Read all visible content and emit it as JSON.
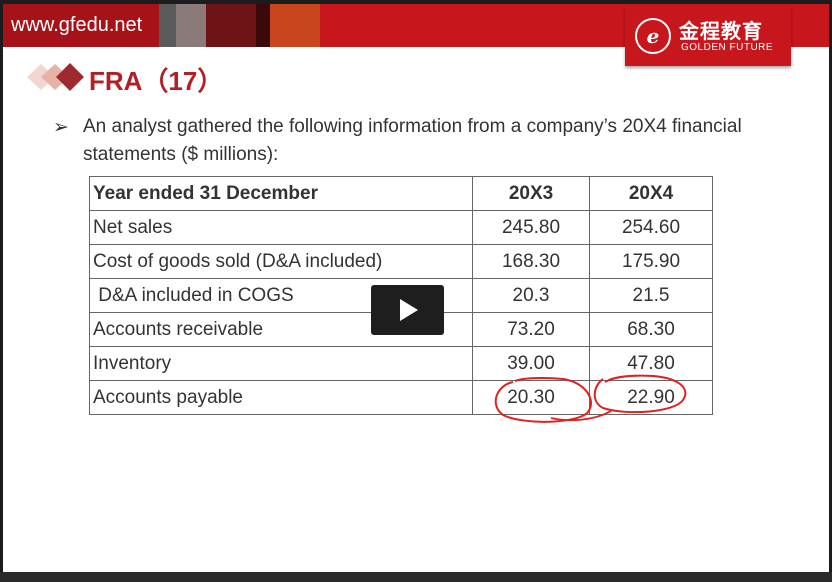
{
  "header": {
    "url": "www.gfedu.net",
    "logo_cn": "金程教育",
    "logo_en": "GOLDEN FUTURE"
  },
  "slide": {
    "title": "FRA（17）",
    "bullet": "➢",
    "intro": "An analyst gathered the following information from a company’s 20X4 financial statements ($ millions):"
  },
  "table": {
    "headers": [
      "Year ended 31 December",
      "20X3",
      "20X4"
    ],
    "rows": [
      [
        "Net sales",
        "245.80",
        "254.60"
      ],
      [
        "Cost of goods sold (D&A included)",
        "168.30",
        "175.90"
      ],
      [
        " D&A included in COGS",
        "20.3",
        "21.5"
      ],
      [
        "Accounts receivable",
        "73.20",
        "68.30"
      ],
      [
        "Inventory",
        "39.00",
        "47.80"
      ],
      [
        "Accounts payable",
        "20.30",
        "22.90"
      ]
    ]
  },
  "colors": {
    "brand_red": "#c8161d",
    "title_red": "#b21f24",
    "annotation_red": "#e0201e"
  },
  "icons": {
    "play": "play-icon",
    "logo_seal": "logo-seal-icon",
    "title_marker": "diamond-icon"
  }
}
